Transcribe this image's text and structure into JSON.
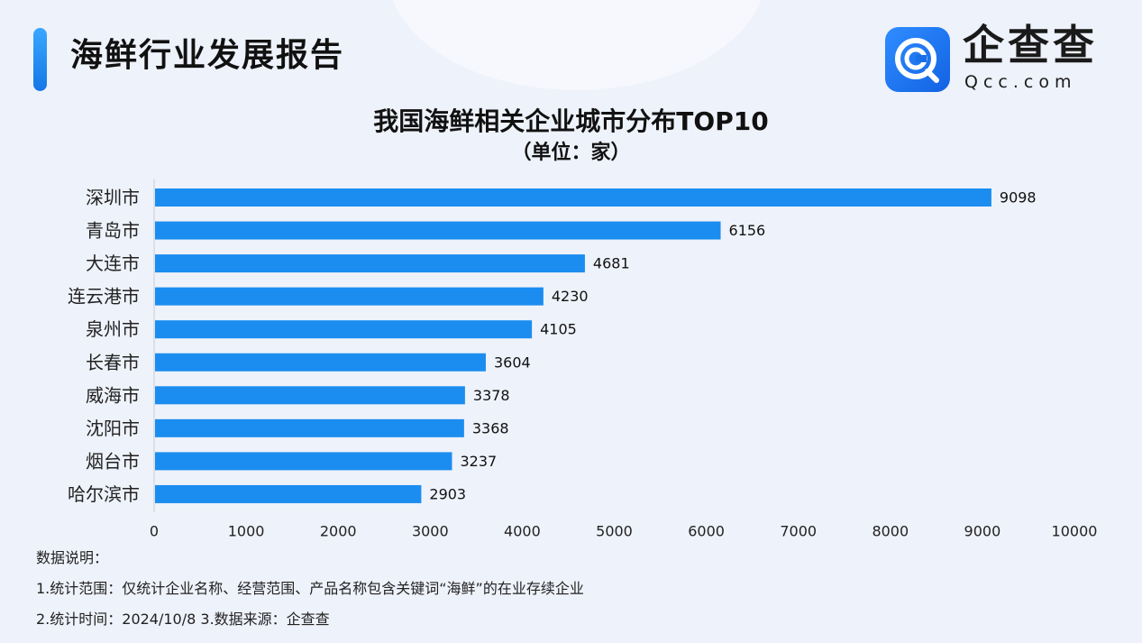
{
  "header": {
    "title": "海鲜行业发展报告",
    "logo_name": "企查查",
    "logo_domain": "Qcc.com"
  },
  "colors": {
    "bar": "#1b8df0",
    "accent": "#1f7ef0"
  },
  "chart_data": {
    "type": "bar",
    "orientation": "horizontal",
    "title": "我国海鲜相关企业城市分布TOP10",
    "subtitle": "（单位：家）",
    "categories": [
      "深圳市",
      "青岛市",
      "大连市",
      "连云港市",
      "泉州市",
      "长春市",
      "威海市",
      "沈阳市",
      "烟台市",
      "哈尔滨市"
    ],
    "values": [
      9098,
      6156,
      4681,
      4230,
      4105,
      3604,
      3378,
      3368,
      3237,
      2903
    ],
    "xlim": [
      0,
      10000
    ],
    "xticks": [
      0,
      1000,
      2000,
      3000,
      4000,
      5000,
      6000,
      7000,
      8000,
      9000,
      10000
    ],
    "xlabel": "",
    "ylabel": "",
    "grid": false,
    "data_labels": true
  },
  "notes": {
    "heading": "数据说明：",
    "line1": "1.统计范围：仅统计企业名称、经营范围、产品名称包含关键词“海鲜”的在业存续企业",
    "line2": "2.统计时间：2024/10/8      3.数据来源：企查查"
  }
}
